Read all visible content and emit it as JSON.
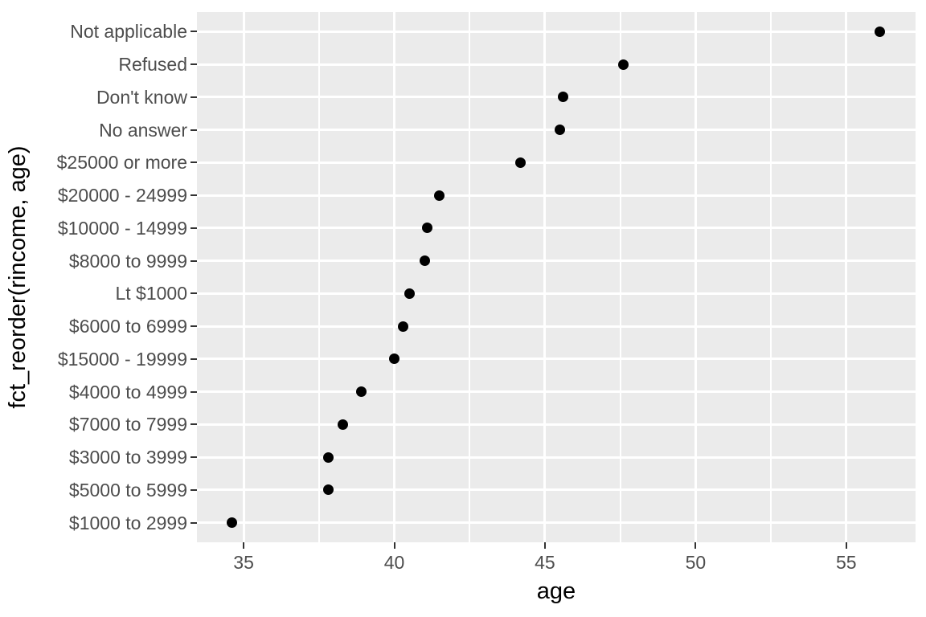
{
  "chart_data": {
    "type": "scatter",
    "title": "",
    "xlabel": "age",
    "ylabel": "fct_reorder(rincome, age)",
    "xlim": [
      33.45,
      57.3
    ],
    "x_ticks": [
      35,
      40,
      45,
      50,
      55
    ],
    "x_tick_labels": [
      "35",
      "40",
      "45",
      "50",
      "55"
    ],
    "x_minor_gridlines": [
      37.5,
      42.5,
      47.5,
      52.5
    ],
    "categories": [
      "Not applicable",
      "Refused",
      "Don't know",
      "No answer",
      "$25000 or more",
      "$20000 - 24999",
      "$10000 - 14999",
      "$8000 to 9999",
      "Lt $1000",
      "$6000 to 6999",
      "$15000 - 19999",
      "$4000 to 4999",
      "$7000 to 7999",
      "$3000 to 3999",
      "$5000 to 5999",
      "$1000 to 2999"
    ],
    "values": [
      56.1,
      47.6,
      45.6,
      45.5,
      44.2,
      41.5,
      41.1,
      41.0,
      40.5,
      40.3,
      40.0,
      38.9,
      38.3,
      37.8,
      37.8,
      34.6
    ],
    "legend": "none",
    "grid": "on",
    "colors": {
      "panel_background": "#EBEBEB",
      "gridline": "#FFFFFF",
      "point": "#000000",
      "tick_label": "#4D4D4D",
      "tick_mark": "#333333",
      "axis_title": "#000000",
      "figure_background": "#FFFFFF"
    }
  }
}
